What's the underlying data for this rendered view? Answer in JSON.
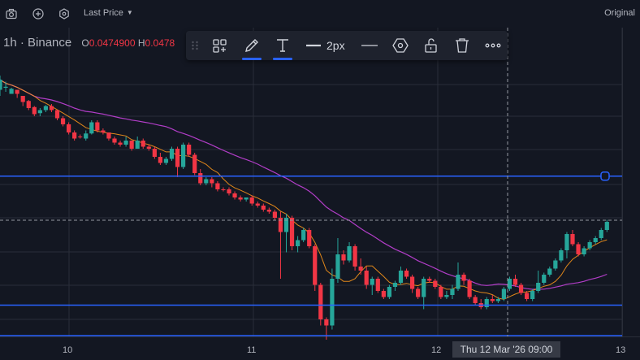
{
  "topbar": {
    "icons": [
      "camera-icon",
      "plus-circle-icon",
      "settings-icon"
    ],
    "last_price_label": "Last Price",
    "original_label": "Original"
  },
  "symbol": {
    "interval": "1h",
    "separator": "·",
    "exchange": "Binance",
    "open_key": "O",
    "open_value": "0.0474900",
    "high_key": "H",
    "high_value": "0.0478"
  },
  "drawing_toolbar": {
    "line_width_label": "2px",
    "pencil_underline_color": "#2962ff",
    "text_underline_color": "#2962ff",
    "tools": [
      "drag-handle-icon",
      "objects-tree-icon",
      "pencil-icon",
      "text-icon",
      "line-width-icon",
      "line-style-icon",
      "visibility-icon",
      "unlock-icon",
      "trash-icon",
      "more-icon"
    ]
  },
  "crosshair": {
    "time_label": "Thu 12 Mar '26   09:00"
  },
  "colors": {
    "up": "#26a69a",
    "down": "#f23645",
    "ma_fast": "#f7931a",
    "ma_slow": "#c341d9",
    "hline": "#2962ff",
    "background": "#131722"
  },
  "chart_data": {
    "type": "candlestick",
    "x_axis_ticks": [
      "10",
      "11",
      "12",
      "13"
    ],
    "series": [
      {
        "name": "price",
        "kind": "candles",
        "candles": [
          [
            0.7,
            0.2,
            0.0,
            1.0
          ],
          [
            0.6,
            0.55,
            0.3,
            0.8
          ],
          [
            0.9,
            0.65,
            0.6,
            0.9
          ],
          [
            0.7,
            0.9,
            0.7,
            1.1
          ],
          [
            1.0,
            1.3,
            1.0,
            1.5
          ],
          [
            1.25,
            1.6,
            1.2,
            1.7
          ],
          [
            1.55,
            1.9,
            1.5,
            2.0
          ],
          [
            1.85,
            1.7,
            1.6,
            2.0
          ],
          [
            1.7,
            1.5,
            1.45,
            1.8
          ],
          [
            1.5,
            1.7,
            1.4,
            1.8
          ],
          [
            1.7,
            2.1,
            1.7,
            2.2
          ],
          [
            2.1,
            2.4,
            2.0,
            2.5
          ],
          [
            2.4,
            2.8,
            2.3,
            2.9
          ],
          [
            2.8,
            3.1,
            2.7,
            3.2
          ],
          [
            3.0,
            3.0,
            2.9,
            3.1
          ],
          [
            3.1,
            2.85,
            2.7,
            3.2
          ],
          [
            2.85,
            2.3,
            2.2,
            2.9
          ],
          [
            2.3,
            2.7,
            2.2,
            2.8
          ],
          [
            2.7,
            2.8,
            2.6,
            2.9
          ],
          [
            2.8,
            3.1,
            2.8,
            3.2
          ],
          [
            3.1,
            3.3,
            3.0,
            3.4
          ],
          [
            3.3,
            3.4,
            3.2,
            3.5
          ],
          [
            3.4,
            3.2,
            3.0,
            3.5
          ],
          [
            3.2,
            3.6,
            3.2,
            3.7
          ],
          [
            3.6,
            3.2,
            3.0,
            3.6
          ],
          [
            3.2,
            3.5,
            3.1,
            3.6
          ],
          [
            3.5,
            3.6,
            3.4,
            3.7
          ],
          [
            3.6,
            4.0,
            3.5,
            4.1
          ],
          [
            4.0,
            4.3,
            3.8,
            4.4
          ],
          [
            4.3,
            4.1,
            4.0,
            4.4
          ],
          [
            4.1,
            3.6,
            3.5,
            4.2
          ],
          [
            3.6,
            4.5,
            3.5,
            5.0
          ],
          [
            4.5,
            3.4,
            3.3,
            4.6
          ],
          [
            3.4,
            3.9,
            3.3,
            4.0
          ],
          [
            3.9,
            4.8,
            3.8,
            4.9
          ],
          [
            4.8,
            5.3,
            4.6,
            5.4
          ],
          [
            5.3,
            5.1,
            5.0,
            5.4
          ],
          [
            5.1,
            5.3,
            5.0,
            5.5
          ],
          [
            5.3,
            5.6,
            5.2,
            5.7
          ],
          [
            5.6,
            5.6,
            5.5,
            5.7
          ],
          [
            5.6,
            5.8,
            5.5,
            5.9
          ],
          [
            5.8,
            6.0,
            5.7,
            6.1
          ],
          [
            6.0,
            6.1,
            5.9,
            6.2
          ],
          [
            6.1,
            6.0,
            6.0,
            6.2
          ],
          [
            6.0,
            6.3,
            5.9,
            6.4
          ],
          [
            6.3,
            6.4,
            6.2,
            6.5
          ],
          [
            6.4,
            6.6,
            6.3,
            6.7
          ],
          [
            6.6,
            6.7,
            6.5,
            6.8
          ],
          [
            6.7,
            7.0,
            6.6,
            7.1
          ],
          [
            7.0,
            7.7,
            6.7,
            10.0
          ],
          [
            7.7,
            7.0,
            6.8,
            8.7
          ],
          [
            7.0,
            8.4,
            6.9,
            8.6
          ],
          [
            8.4,
            8.1,
            7.9,
            8.7
          ],
          [
            8.1,
            7.6,
            7.5,
            8.2
          ],
          [
            7.6,
            8.4,
            7.5,
            8.5
          ],
          [
            8.4,
            10.3,
            8.3,
            10.6
          ],
          [
            10.3,
            12.0,
            10.2,
            12.3
          ],
          [
            12.0,
            12.3,
            11.9,
            13.0
          ],
          [
            12.3,
            10.0,
            9.5,
            12.5
          ],
          [
            10.0,
            8.8,
            8.0,
            10.2
          ],
          [
            8.8,
            9.1,
            8.6,
            9.3
          ],
          [
            9.1,
            8.4,
            8.2,
            9.2
          ],
          [
            8.4,
            9.4,
            8.3,
            9.6
          ],
          [
            9.4,
            9.6,
            9.0,
            9.8
          ],
          [
            9.6,
            10.3,
            9.4,
            10.5
          ],
          [
            10.3,
            10.0,
            9.9,
            10.8
          ],
          [
            10.0,
            10.6,
            9.9,
            10.7
          ],
          [
            10.6,
            10.9,
            10.5,
            11.0
          ],
          [
            10.9,
            10.4,
            10.3,
            11.0
          ],
          [
            10.4,
            10.2,
            10.1,
            10.6
          ],
          [
            10.2,
            9.6,
            9.4,
            10.3
          ],
          [
            9.6,
            9.9,
            9.5,
            10.0
          ],
          [
            9.9,
            10.5,
            9.8,
            10.7
          ],
          [
            10.5,
            10.9,
            10.4,
            11.0
          ],
          [
            10.9,
            10.0,
            9.9,
            11.5
          ],
          [
            10.0,
            10.1,
            9.9,
            10.2
          ],
          [
            10.1,
            10.4,
            10.0,
            10.5
          ],
          [
            10.4,
            10.9,
            10.3,
            11.0
          ],
          [
            10.9,
            10.8,
            10.6,
            11.0
          ],
          [
            10.8,
            10.5,
            10.3,
            11.0
          ],
          [
            10.5,
            9.8,
            9.2,
            10.6
          ],
          [
            9.8,
            10.1,
            9.7,
            10.3
          ],
          [
            10.1,
            10.9,
            10.0,
            11.0
          ],
          [
            10.9,
            11.2,
            10.8,
            11.3
          ],
          [
            11.2,
            11.4,
            11.0,
            11.5
          ],
          [
            11.4,
            11.0,
            10.9,
            11.5
          ],
          [
            11.0,
            11.1,
            10.8,
            11.2
          ],
          [
            11.1,
            11.0,
            10.9,
            11.2
          ],
          [
            11.0,
            10.5,
            10.4,
            11.1
          ],
          [
            10.5,
            10.0,
            9.9,
            10.6
          ],
          [
            10.0,
            10.3,
            9.8,
            10.4
          ],
          [
            10.3,
            10.7,
            10.2,
            10.8
          ],
          [
            10.7,
            11.0,
            10.6,
            11.1
          ],
          [
            11.0,
            10.6,
            10.5,
            11.1
          ],
          [
            10.6,
            10.2,
            9.6,
            10.7
          ],
          [
            10.2,
            9.8,
            9.7,
            10.3
          ],
          [
            9.8,
            9.5,
            9.4,
            9.9
          ],
          [
            9.5,
            9.1,
            9.0,
            9.6
          ],
          [
            9.1,
            8.6,
            8.5,
            9.2
          ],
          [
            8.6,
            7.8,
            7.7,
            9.0
          ],
          [
            7.8,
            8.3,
            7.6,
            8.4
          ],
          [
            8.3,
            8.8,
            8.2,
            8.9
          ],
          [
            8.8,
            8.5,
            8.4,
            8.9
          ],
          [
            8.5,
            8.2,
            8.1,
            8.6
          ],
          [
            8.2,
            8.0,
            7.9,
            8.3
          ],
          [
            8.0,
            7.6,
            7.5,
            8.1
          ],
          [
            7.6,
            7.2,
            7.1,
            7.7
          ]
        ]
      },
      {
        "name": "ma_fast",
        "kind": "line"
      },
      {
        "name": "ma_slow",
        "kind": "line"
      }
    ],
    "horizontal_lines": [
      {
        "level": "upper",
        "value": 4.95
      },
      {
        "level": "middle",
        "value": 11.3
      },
      {
        "level": "lower",
        "value": 12.8
      }
    ],
    "grid": true
  }
}
